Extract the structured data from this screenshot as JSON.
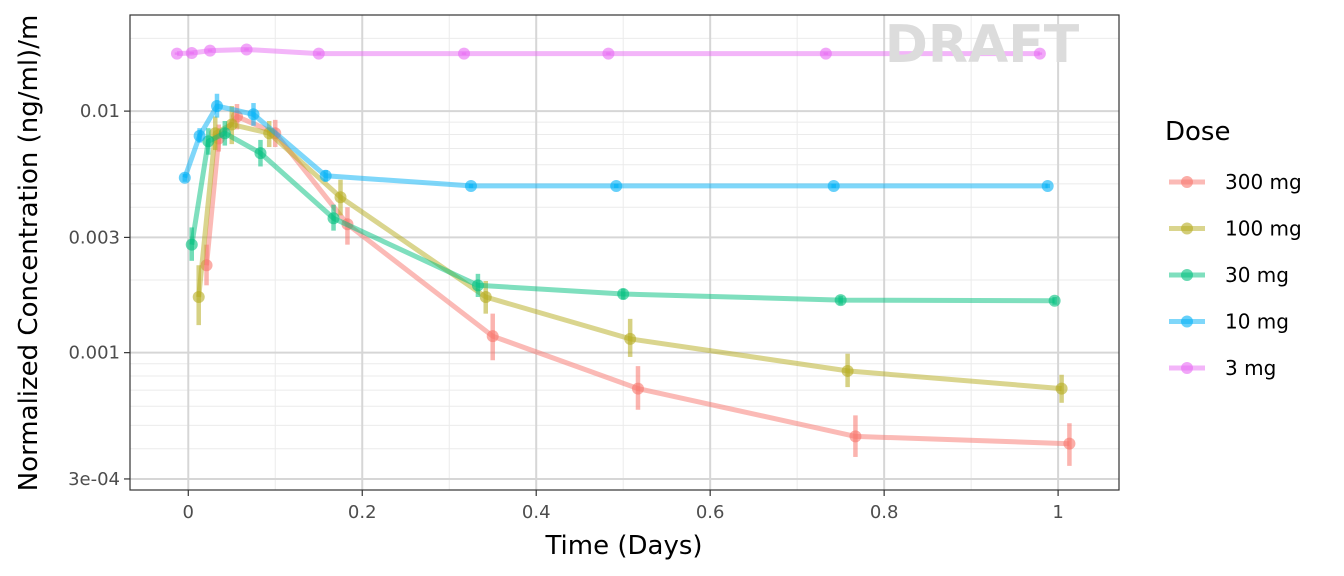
{
  "chart_data": {
    "type": "line",
    "title": "",
    "watermark": "DRAFT",
    "xlabel": "Time (Days)",
    "ylabel": "Normalized Concentration (ng/ml)/m",
    "xlim": [
      -0.067,
      1.07
    ],
    "ylim": [
      0.00027,
      0.025
    ],
    "y_scale": "log",
    "x_ticks": [
      0,
      0.2,
      0.4,
      0.6,
      0.8,
      1
    ],
    "x_tick_labels": [
      "0",
      "0.2",
      "0.4",
      "0.6",
      "0.8",
      "1"
    ],
    "y_ticks": [
      0.0003,
      0.001,
      0.003,
      0.01
    ],
    "y_tick_labels": [
      "3e-04",
      "0.001",
      "0.003",
      "0.01"
    ],
    "grid": true,
    "legend_title": "Dose",
    "legend_position": "right",
    "series": [
      {
        "name": "300 mg",
        "color": "#F8766D",
        "points": [
          {
            "x": 0.021,
            "y": 0.0023,
            "lo": 0.0019,
            "hi": 0.0028
          },
          {
            "x": 0.035,
            "y": 0.0077,
            "lo": 0.0068,
            "hi": 0.0088
          },
          {
            "x": 0.056,
            "y": 0.0095,
            "lo": 0.0084,
            "hi": 0.0107
          },
          {
            "x": 0.1,
            "y": 0.0081,
            "lo": 0.0071,
            "hi": 0.0092
          },
          {
            "x": 0.183,
            "y": 0.0034,
            "lo": 0.0028,
            "hi": 0.004
          },
          {
            "x": 0.35,
            "y": 0.00117,
            "lo": 0.00093,
            "hi": 0.00145
          },
          {
            "x": 0.517,
            "y": 0.00071,
            "lo": 0.00058,
            "hi": 0.00088
          },
          {
            "x": 0.767,
            "y": 0.00045,
            "lo": 0.00037,
            "hi": 0.00055
          },
          {
            "x": 1.013,
            "y": 0.00042,
            "lo": 0.00034,
            "hi": 0.00051
          }
        ]
      },
      {
        "name": "100 mg",
        "color": "#B5AC1E",
        "points": [
          {
            "x": 0.012,
            "y": 0.0017,
            "lo": 0.0013,
            "hi": 0.0023
          },
          {
            "x": 0.031,
            "y": 0.0081,
            "lo": 0.0069,
            "hi": 0.0095
          },
          {
            "x": 0.05,
            "y": 0.0088,
            "lo": 0.0073,
            "hi": 0.0105
          },
          {
            "x": 0.093,
            "y": 0.0081,
            "lo": 0.0071,
            "hi": 0.0091
          },
          {
            "x": 0.175,
            "y": 0.0044,
            "lo": 0.0037,
            "hi": 0.0052
          },
          {
            "x": 0.342,
            "y": 0.0017,
            "lo": 0.00145,
            "hi": 0.00198
          },
          {
            "x": 0.508,
            "y": 0.00114,
            "lo": 0.00096,
            "hi": 0.00138
          },
          {
            "x": 0.758,
            "y": 0.00084,
            "lo": 0.00072,
            "hi": 0.00099
          },
          {
            "x": 1.004,
            "y": 0.00071,
            "lo": 0.00062,
            "hi": 0.00081
          }
        ]
      },
      {
        "name": "30 mg",
        "color": "#00BF7D",
        "points": [
          {
            "x": 0.004,
            "y": 0.0028,
            "lo": 0.0024,
            "hi": 0.0033
          },
          {
            "x": 0.023,
            "y": 0.0075,
            "lo": 0.0066,
            "hi": 0.0085
          },
          {
            "x": 0.042,
            "y": 0.0081,
            "lo": 0.0072,
            "hi": 0.0091
          },
          {
            "x": 0.083,
            "y": 0.0067,
            "lo": 0.0059,
            "hi": 0.0076
          },
          {
            "x": 0.167,
            "y": 0.0036,
            "lo": 0.0032,
            "hi": 0.0041
          },
          {
            "x": 0.333,
            "y": 0.0019,
            "lo": 0.0017,
            "hi": 0.00212
          },
          {
            "x": 0.5,
            "y": 0.00175,
            "lo": 0.00166,
            "hi": 0.00184
          },
          {
            "x": 0.75,
            "y": 0.00165,
            "lo": 0.00158,
            "hi": 0.00172
          },
          {
            "x": 0.996,
            "y": 0.00164,
            "lo": 0.00158,
            "hi": 0.0017
          }
        ]
      },
      {
        "name": "10 mg",
        "color": "#00B0F6",
        "points": [
          {
            "x": -0.004,
            "y": 0.0053,
            "lo": 0.0051,
            "hi": 0.0055
          },
          {
            "x": 0.013,
            "y": 0.0079,
            "lo": 0.0074,
            "hi": 0.0085
          },
          {
            "x": 0.033,
            "y": 0.0105,
            "lo": 0.0094,
            "hi": 0.0118
          },
          {
            "x": 0.075,
            "y": 0.0097,
            "lo": 0.0087,
            "hi": 0.0108
          },
          {
            "x": 0.158,
            "y": 0.0054,
            "lo": 0.0051,
            "hi": 0.0057
          },
          {
            "x": 0.325,
            "y": 0.0049,
            "lo": 0.0048,
            "hi": 0.005
          },
          {
            "x": 0.492,
            "y": 0.0049,
            "lo": 0.0048,
            "hi": 0.005
          },
          {
            "x": 0.742,
            "y": 0.0049,
            "lo": 0.0048,
            "hi": 0.005
          },
          {
            "x": 0.988,
            "y": 0.0049,
            "lo": 0.0048,
            "hi": 0.005
          }
        ]
      },
      {
        "name": "3 mg",
        "color": "#E76BF3",
        "points": [
          {
            "x": -0.013,
            "y": 0.0173,
            "lo": 0.0171,
            "hi": 0.0175
          },
          {
            "x": 0.004,
            "y": 0.0174,
            "lo": 0.0172,
            "hi": 0.0176
          },
          {
            "x": 0.025,
            "y": 0.0178,
            "lo": 0.0176,
            "hi": 0.018
          },
          {
            "x": 0.067,
            "y": 0.018,
            "lo": 0.0178,
            "hi": 0.0182
          },
          {
            "x": 0.15,
            "y": 0.0173,
            "lo": 0.0171,
            "hi": 0.0175
          },
          {
            "x": 0.317,
            "y": 0.0173,
            "lo": 0.0171,
            "hi": 0.0175
          },
          {
            "x": 0.483,
            "y": 0.0173,
            "lo": 0.0171,
            "hi": 0.0175
          },
          {
            "x": 0.733,
            "y": 0.0173,
            "lo": 0.0171,
            "hi": 0.0175
          },
          {
            "x": 0.979,
            "y": 0.0173,
            "lo": 0.0171,
            "hi": 0.0175
          }
        ]
      }
    ]
  }
}
